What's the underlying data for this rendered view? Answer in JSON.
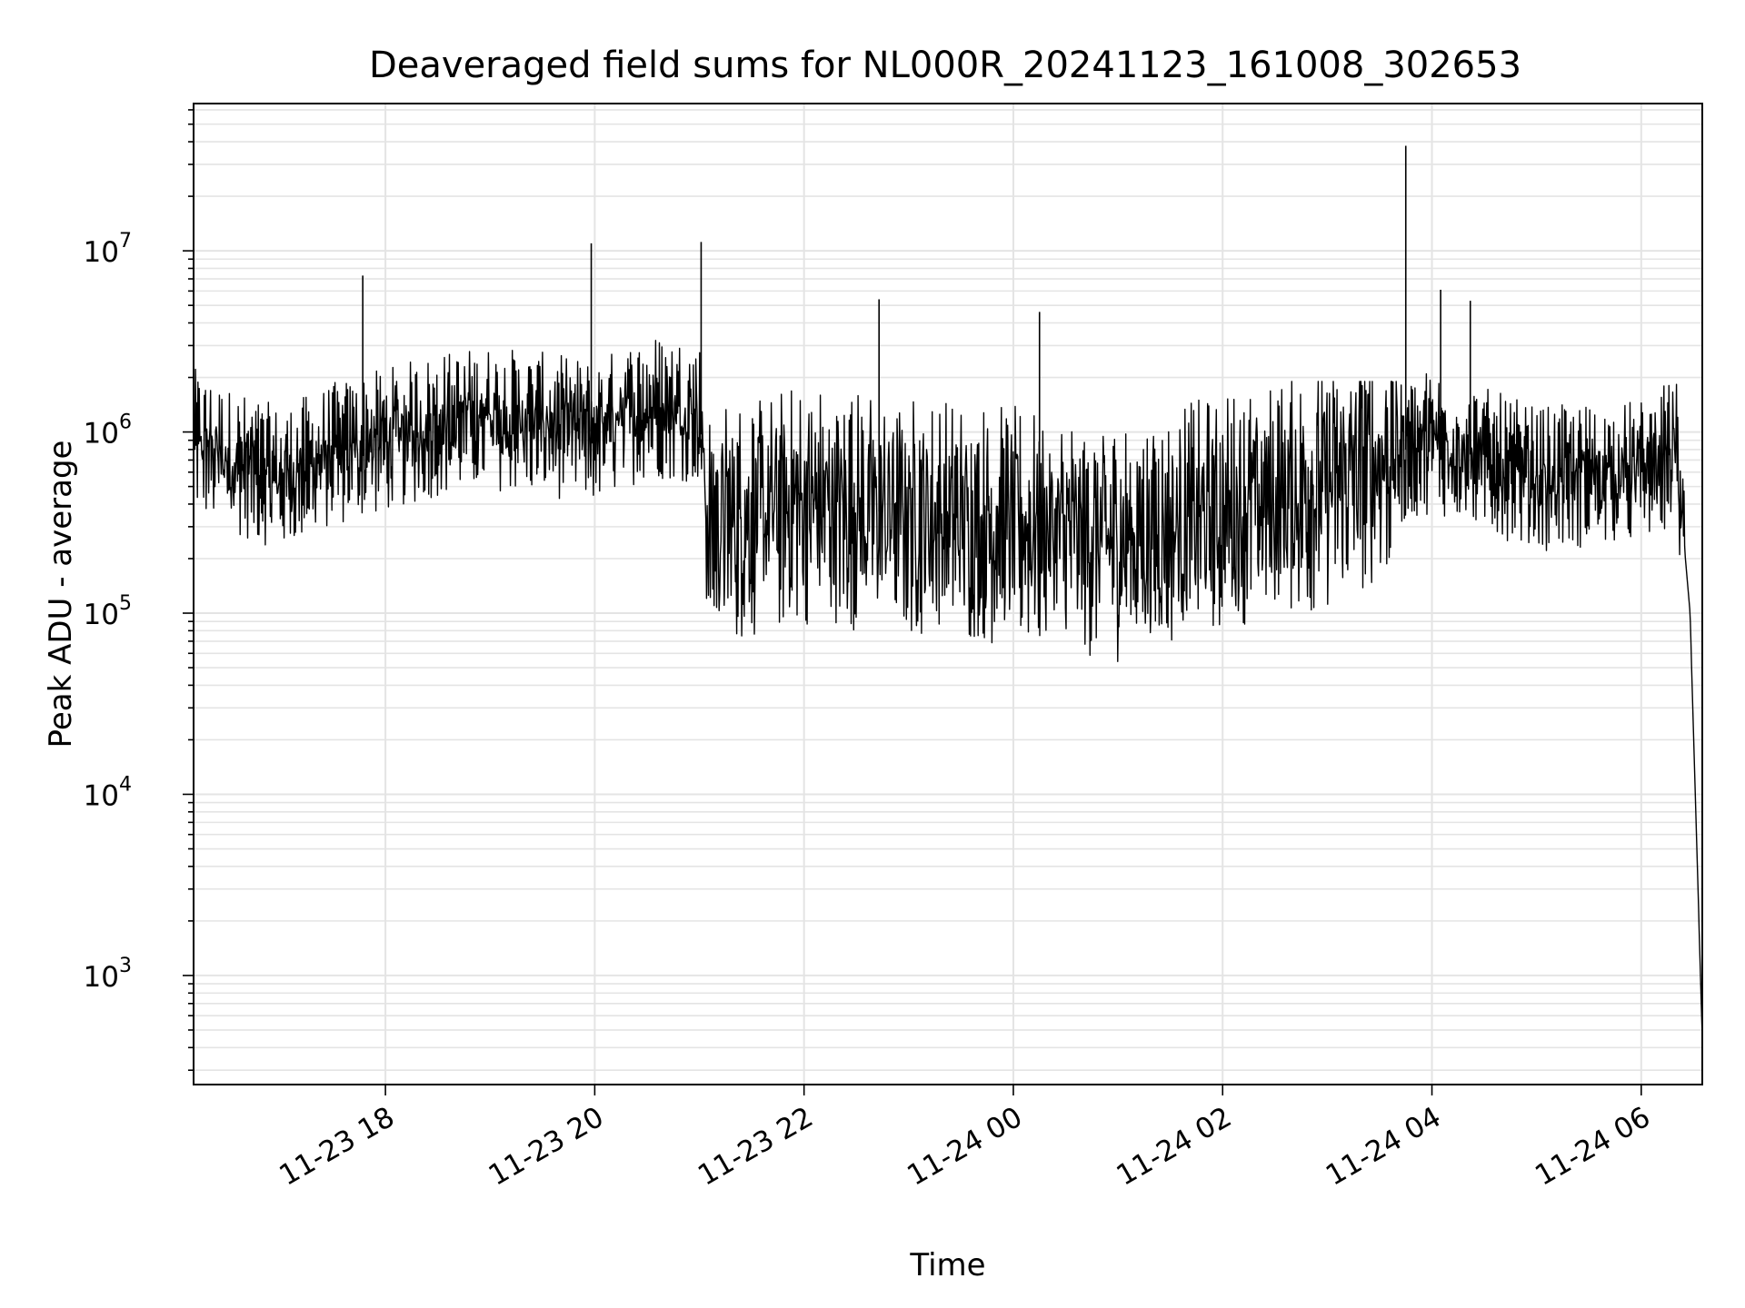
{
  "chart_data": {
    "type": "line",
    "title": "Deaveraged field sums for NL000R_20241123_161008_302653",
    "xlabel": "Time",
    "ylabel": "Peak ADU - average",
    "yscale": "log",
    "ylim": [
      250,
      65000000
    ],
    "xlim": [
      "2024-11-23 16:10",
      "2024-11-24 06:35"
    ],
    "grid": true,
    "x_ticks": [
      {
        "label": "11-23 18",
        "time": "2024-11-23 18:00"
      },
      {
        "label": "11-23 20",
        "time": "2024-11-23 20:00"
      },
      {
        "label": "11-23 22",
        "time": "2024-11-23 22:00"
      },
      {
        "label": "11-24 00",
        "time": "2024-11-24 00:00"
      },
      {
        "label": "11-24 02",
        "time": "2024-11-24 02:00"
      },
      {
        "label": "11-24 04",
        "time": "2024-11-24 04:00"
      },
      {
        "label": "11-24 06",
        "time": "2024-11-24 06:00"
      }
    ],
    "y_ticks": [
      {
        "base": "10",
        "exp": "3",
        "value": 1000
      },
      {
        "base": "10",
        "exp": "4",
        "value": 10000
      },
      {
        "base": "10",
        "exp": "5",
        "value": 100000
      },
      {
        "base": "10",
        "exp": "6",
        "value": 1000000
      },
      {
        "base": "10",
        "exp": "7",
        "value": 10000000
      }
    ],
    "series": [
      {
        "color": "#000000",
        "points": [
          {
            "x": "2024-11-23 16:10",
            "y": 900000
          },
          {
            "x": "2024-11-23 16:30",
            "y": 700000
          },
          {
            "x": "2024-11-23 17:00",
            "y": 550000
          },
          {
            "x": "2024-11-23 17:30",
            "y": 750000
          },
          {
            "x": "2024-11-23 18:00",
            "y": 900000
          },
          {
            "x": "2024-11-23 18:30",
            "y": 1100000
          },
          {
            "x": "2024-11-23 19:00",
            "y": 1200000
          },
          {
            "x": "2024-11-23 19:30",
            "y": 1100000
          },
          {
            "x": "2024-11-23 20:00",
            "y": 1000000
          },
          {
            "x": "2024-11-23 20:30",
            "y": 1400000
          },
          {
            "x": "2024-11-23 21:00",
            "y": 1300000
          },
          {
            "x": "2024-11-23 21:05",
            "y": 300000
          },
          {
            "x": "2024-11-23 22:00",
            "y": 400000
          },
          {
            "x": "2024-11-23 23:00",
            "y": 350000
          },
          {
            "x": "2024-11-24 00:00",
            "y": 300000
          },
          {
            "x": "2024-11-24 01:00",
            "y": 250000
          },
          {
            "x": "2024-11-24 02:00",
            "y": 350000
          },
          {
            "x": "2024-11-24 03:00",
            "y": 500000
          },
          {
            "x": "2024-11-24 03:45",
            "y": 800000
          },
          {
            "x": "2024-11-24 04:00",
            "y": 900000
          },
          {
            "x": "2024-11-24 05:00",
            "y": 550000
          },
          {
            "x": "2024-11-24 06:00",
            "y": 600000
          },
          {
            "x": "2024-11-24 06:20",
            "y": 800000
          },
          {
            "x": "2024-11-24 06:28",
            "y": 100000
          },
          {
            "x": "2024-11-24 06:35",
            "y": 450
          }
        ],
        "spikes": [
          {
            "x": "2024-11-23 17:47",
            "y": 7300000
          },
          {
            "x": "2024-11-23 19:58",
            "y": 11000000
          },
          {
            "x": "2024-11-23 21:01",
            "y": 11200000
          },
          {
            "x": "2024-11-23 22:43",
            "y": 5400000
          },
          {
            "x": "2024-11-24 00:15",
            "y": 4600000
          },
          {
            "x": "2024-11-24 03:45",
            "y": 38000000
          },
          {
            "x": "2024-11-24 04:05",
            "y": 6100000
          },
          {
            "x": "2024-11-24 04:22",
            "y": 5300000
          }
        ]
      }
    ]
  }
}
